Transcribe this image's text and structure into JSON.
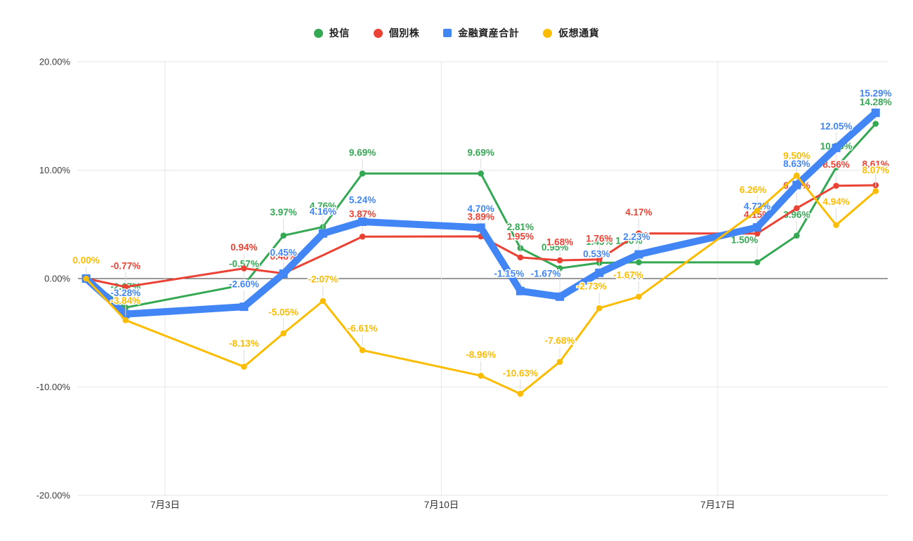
{
  "legend": {
    "items": [
      {
        "label": "投信",
        "color": "#34a853",
        "marker": "circle"
      },
      {
        "label": "個別株",
        "color": "#ea4335",
        "marker": "circle"
      },
      {
        "label": "金融資産合計",
        "color": "#4285f4",
        "marker": "square"
      },
      {
        "label": "仮想通貨",
        "color": "#fbbc04",
        "marker": "circle"
      }
    ]
  },
  "chart_data": {
    "type": "line",
    "title": "",
    "ylabel": "",
    "xlabel": "",
    "ylim": [
      -20,
      20
    ],
    "grid": true,
    "legend_position": "top-center",
    "y_ticks": [
      {
        "v": 20,
        "label": "20.00%"
      },
      {
        "v": 10,
        "label": "10.00%"
      },
      {
        "v": 0,
        "label": "0.00%"
      },
      {
        "v": -10,
        "label": "-10.00%"
      },
      {
        "v": -20,
        "label": "-20.00%"
      }
    ],
    "x_days": [
      0,
      1,
      4,
      5,
      6,
      7,
      10,
      11,
      12,
      13,
      14,
      17,
      18,
      19,
      20
    ],
    "x_ticks": [
      {
        "day": 2,
        "label": "7月3日"
      },
      {
        "day": 9,
        "label": "7月10日"
      },
      {
        "day": 16,
        "label": "7月17日"
      }
    ],
    "series": [
      {
        "name": "投信",
        "color": "#34a853",
        "line_width": 3,
        "marker": "circle",
        "points": [
          {
            "v": 0,
            "label": ""
          },
          {
            "v": -2.67,
            "label": "-2.67%"
          },
          {
            "v": -0.57,
            "label": "-0.57%"
          },
          {
            "v": 3.97,
            "label": "3.97%",
            "dy": -33
          },
          {
            "v": 4.76,
            "label": "4.76%"
          },
          {
            "v": 9.69,
            "label": "9.69%"
          },
          {
            "v": 9.69,
            "label": "9.69%"
          },
          {
            "v": 2.81,
            "label": "2.81%"
          },
          {
            "v": 0.95,
            "label": "0.95%",
            "dx": -7
          },
          {
            "v": 1.45,
            "label": "1.45%"
          },
          {
            "v": 1.5,
            "label": "1.50%",
            "dx": -14,
            "dy": -31
          },
          {
            "v": 1.5,
            "label": "1.50%",
            "dx": -18,
            "dy": -32
          },
          {
            "v": 3.96,
            "label": "3.96%"
          },
          {
            "v": 10.25,
            "label": "10.25%"
          },
          {
            "v": 14.28,
            "label": "14.28%",
            "dy": -31
          }
        ]
      },
      {
        "name": "個別株",
        "color": "#ea4335",
        "line_width": 3,
        "marker": "circle",
        "points": [
          {
            "v": 0,
            "label": ""
          },
          {
            "v": -0.77,
            "label": "-0.77%"
          },
          {
            "v": 0.94,
            "label": "0.94%"
          },
          {
            "v": 0.48,
            "label": "0.48%",
            "dy": -24
          },
          {
            "v": 2.15,
            "label": "",
            "dot": false
          },
          {
            "v": 3.87,
            "label": "3.87%",
            "dy": -32
          },
          {
            "v": 3.89,
            "label": "3.89%",
            "dy": -28
          },
          {
            "v": 1.95,
            "label": "1.95%"
          },
          {
            "v": 1.68,
            "label": "1.68%",
            "dy": -26
          },
          {
            "v": 1.76,
            "label": "1.76%"
          },
          {
            "v": 4.17,
            "label": "4.17%"
          },
          {
            "v": 4.15,
            "label": "4.15%",
            "dy": -27
          },
          {
            "v": 6.49,
            "label": "6.49%",
            "dy": -32
          },
          {
            "v": 8.56,
            "label": "8.56%"
          },
          {
            "v": 8.61,
            "label": "8.61%"
          }
        ]
      },
      {
        "name": "金融資産合計",
        "color": "#4285f4",
        "line_width": 10,
        "marker": "square",
        "points": [
          {
            "v": 0,
            "label": ""
          },
          {
            "v": -3.28,
            "label": "-3.28%"
          },
          {
            "v": -2.6,
            "label": "-2.60%",
            "dy": -32
          },
          {
            "v": 0.45,
            "label": "0.45%"
          },
          {
            "v": 4.16,
            "label": "4.16%",
            "dy": -31
          },
          {
            "v": 5.24,
            "label": "5.24%",
            "dy": -31
          },
          {
            "v": 4.7,
            "label": "4.70%",
            "dy": -27
          },
          {
            "v": -1.15,
            "label": "-1.15%",
            "dx": -16,
            "dy": -25
          },
          {
            "v": -1.67,
            "label": "-1.67%",
            "dx": -20,
            "dy": -33
          },
          {
            "v": 0.53,
            "label": "0.53%",
            "dx": -4,
            "dy": -27
          },
          {
            "v": 2.23,
            "label": "2.23%",
            "dx": -3,
            "dy": -25
          },
          {
            "v": 4.72,
            "label": "4.72%"
          },
          {
            "v": 8.63,
            "label": "8.63%"
          },
          {
            "v": 12.05,
            "label": "12.05%",
            "dy": -31
          },
          {
            "v": 15.29,
            "label": "15.29%",
            "dy": -28
          }
        ]
      },
      {
        "name": "仮想通貨",
        "color": "#fbbc04",
        "line_width": 3,
        "marker": "circle",
        "points": [
          {
            "v": 0,
            "label": "0.00%",
            "dy": -26
          },
          {
            "v": -3.84,
            "label": "-3.84%",
            "dy": -28
          },
          {
            "v": -8.13,
            "label": "-8.13%",
            "dy": -33
          },
          {
            "v": -5.05,
            "label": "-5.05%"
          },
          {
            "v": -2.07,
            "label": "-2.07%",
            "dy": -31
          },
          {
            "v": -6.61,
            "label": "-6.61%",
            "dy": -31
          },
          {
            "v": -8.96,
            "label": "-8.96%"
          },
          {
            "v": -10.63,
            "label": "-10.63%",
            "dy": -29
          },
          {
            "v": -7.68,
            "label": "-7.68%"
          },
          {
            "v": -2.73,
            "label": "-2.73%",
            "dx": -11,
            "dy": -31
          },
          {
            "v": -1.67,
            "label": "-1.67%",
            "dx": -15,
            "dy": -31
          },
          {
            "v": 6.26,
            "label": "6.26%",
            "dx": -6
          },
          {
            "v": 9.5,
            "label": "9.50%",
            "dy": -28
          },
          {
            "v": 4.94,
            "label": "4.94%",
            "dy": -33
          },
          {
            "v": 8.07,
            "label": "8.07%"
          }
        ]
      }
    ]
  }
}
